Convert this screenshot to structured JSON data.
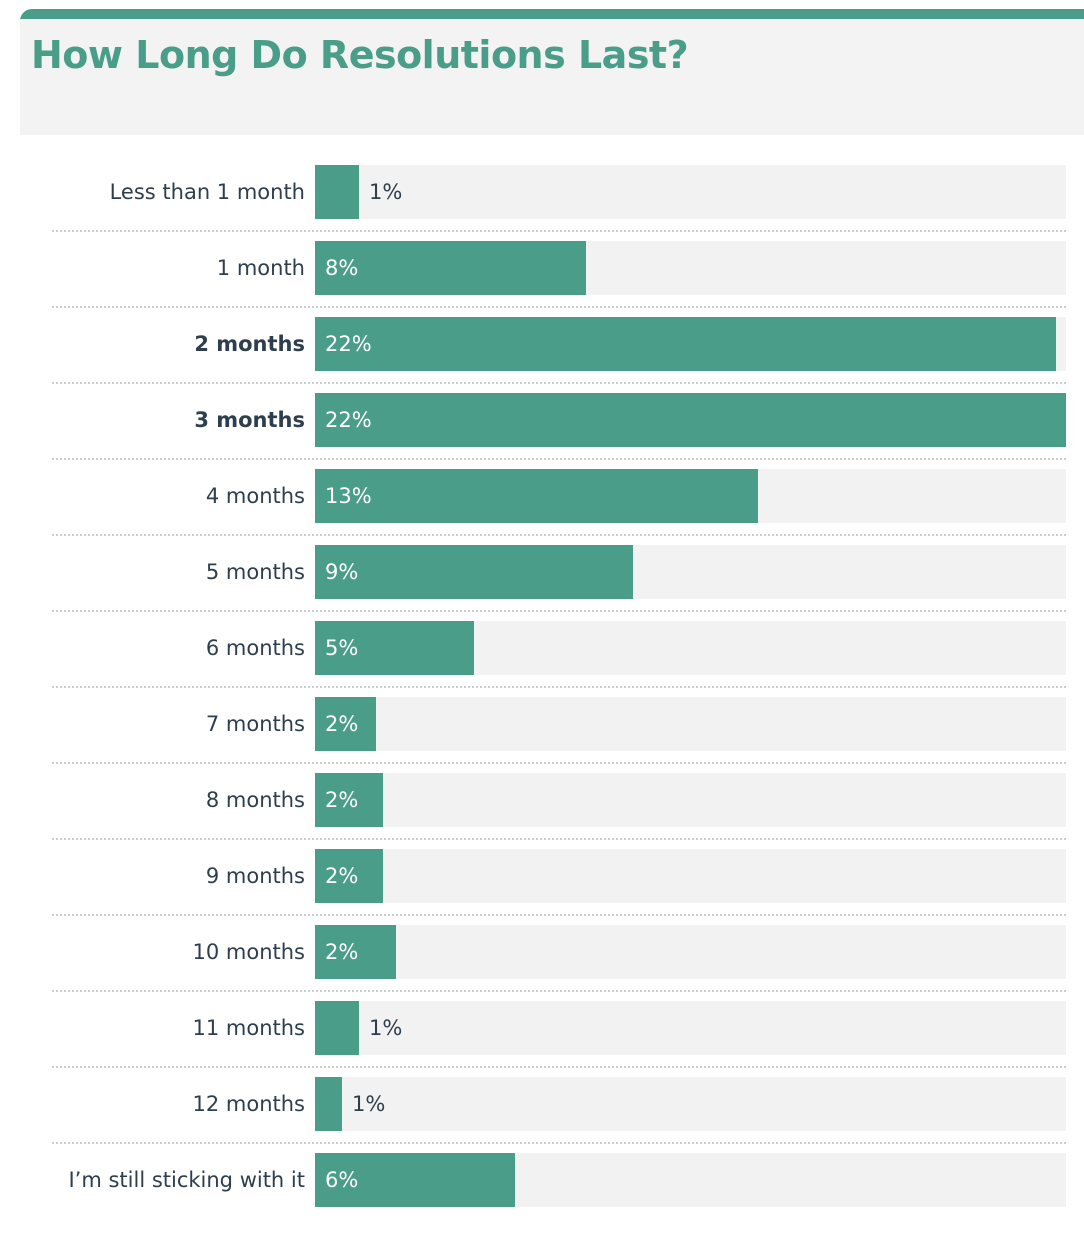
{
  "title": "How Long Do Resolutions Last?",
  "colors": {
    "accent": "#4a9e89",
    "track": "#f2f2f2",
    "text": "#2d3e4e"
  },
  "chart_data": {
    "type": "bar",
    "orientation": "horizontal",
    "title": "How Long Do Resolutions Last?",
    "categories": [
      "Less than 1 month",
      "1 month",
      "2 months",
      "3 months",
      "4 months",
      "5 months",
      "6 months",
      "7 months",
      "8 months",
      "9 months",
      "10 months",
      "11 months",
      "12 months",
      "I’m still sticking with it"
    ],
    "values": [
      1,
      8,
      22,
      22,
      13,
      9,
      5,
      2,
      2,
      2,
      2,
      1,
      1,
      6
    ],
    "value_labels": [
      "1%",
      "8%",
      "22%",
      "22%",
      "13%",
      "9%",
      "5%",
      "2%",
      "2%",
      "2%",
      "2%",
      "1%",
      "1%",
      "6%"
    ],
    "bar_fractions": [
      0.058,
      0.361,
      0.987,
      1.0,
      0.59,
      0.423,
      0.212,
      0.081,
      0.09,
      0.09,
      0.108,
      0.058,
      0.036,
      0.266
    ],
    "highlighted": [
      false,
      false,
      true,
      true,
      false,
      false,
      false,
      false,
      false,
      false,
      false,
      false,
      false,
      false
    ],
    "xlim": [
      0,
      22
    ],
    "grid": false,
    "legend": "none"
  }
}
